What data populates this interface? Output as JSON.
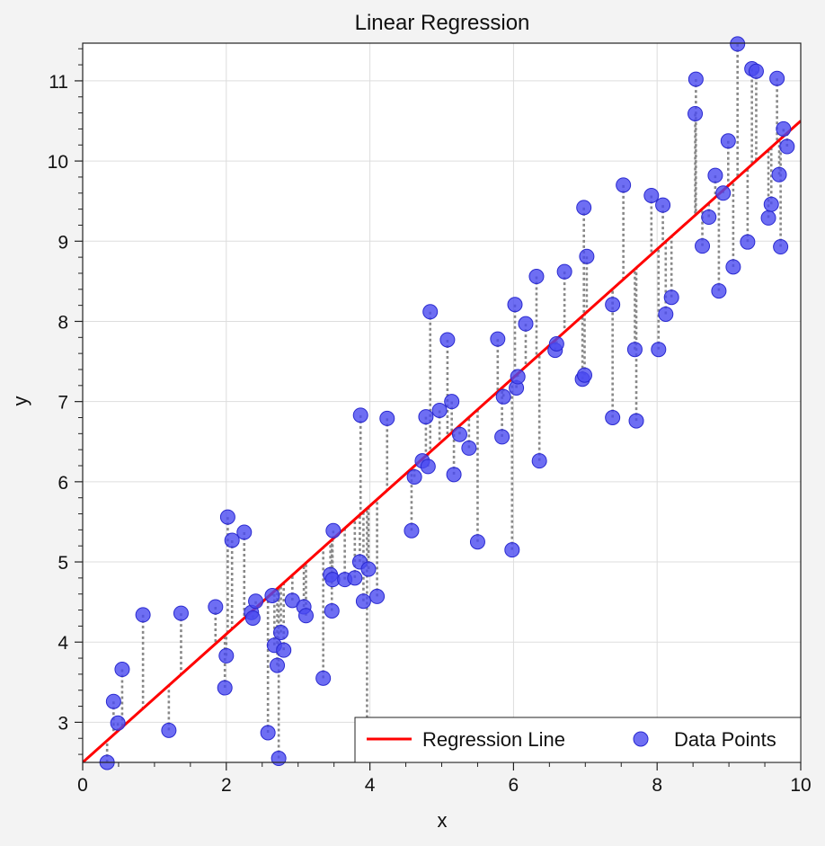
{
  "chart_data": {
    "type": "scatter",
    "title": "Linear Regression",
    "xlabel": "x",
    "ylabel": "y",
    "xlim": [
      0,
      10
    ],
    "ylim": [
      2.5,
      11.47
    ],
    "xticks": [
      0,
      2,
      4,
      6,
      8,
      10
    ],
    "yticks": [
      3,
      4,
      5,
      6,
      7,
      8,
      9,
      10,
      11
    ],
    "grid": true,
    "legend_placement": "lower-right",
    "colors": {
      "points": "#4a4af0",
      "regression_line": "#ff0000",
      "residuals": "#888888",
      "background": "#f3f3f3",
      "plot_area": "#ffffff"
    },
    "regression": {
      "name": "Regression Line",
      "intercept": 2.5,
      "slope": 0.8
    },
    "series": [
      {
        "name": "Data Points",
        "points": [
          [
            0.34,
            2.5
          ],
          [
            0.43,
            3.26
          ],
          [
            0.49,
            2.99
          ],
          [
            0.55,
            3.66
          ],
          [
            0.84,
            4.34
          ],
          [
            1.2,
            2.9
          ],
          [
            1.37,
            4.36
          ],
          [
            1.85,
            4.44
          ],
          [
            1.98,
            3.43
          ],
          [
            2.0,
            3.83
          ],
          [
            2.02,
            5.56
          ],
          [
            2.08,
            5.27
          ],
          [
            2.25,
            5.37
          ],
          [
            2.35,
            4.37
          ],
          [
            2.37,
            4.3
          ],
          [
            2.41,
            4.51
          ],
          [
            2.58,
            2.87
          ],
          [
            2.64,
            4.58
          ],
          [
            2.67,
            3.96
          ],
          [
            2.71,
            3.71
          ],
          [
            2.73,
            2.55
          ],
          [
            2.76,
            4.12
          ],
          [
            2.8,
            3.9
          ],
          [
            2.92,
            4.52
          ],
          [
            3.08,
            4.44
          ],
          [
            3.11,
            4.33
          ],
          [
            3.35,
            3.55
          ],
          [
            3.45,
            4.84
          ],
          [
            3.47,
            4.39
          ],
          [
            3.48,
            4.78
          ],
          [
            3.49,
            5.39
          ],
          [
            3.65,
            4.78
          ],
          [
            3.79,
            4.8
          ],
          [
            3.86,
            5.0
          ],
          [
            3.87,
            6.83
          ],
          [
            3.91,
            4.51
          ],
          [
            3.96,
            2.92
          ],
          [
            3.98,
            4.91
          ],
          [
            4.1,
            4.57
          ],
          [
            4.24,
            6.79
          ],
          [
            4.58,
            5.39
          ],
          [
            4.62,
            6.06
          ],
          [
            4.73,
            6.26
          ],
          [
            4.78,
            6.81
          ],
          [
            4.81,
            6.19
          ],
          [
            4.84,
            8.12
          ],
          [
            4.97,
            6.89
          ],
          [
            5.08,
            7.77
          ],
          [
            5.14,
            7.0
          ],
          [
            5.17,
            6.09
          ],
          [
            5.25,
            6.59
          ],
          [
            5.38,
            6.42
          ],
          [
            5.5,
            5.25
          ],
          [
            5.78,
            7.78
          ],
          [
            5.84,
            6.56
          ],
          [
            5.86,
            7.06
          ],
          [
            5.98,
            5.15
          ],
          [
            6.02,
            8.21
          ],
          [
            6.04,
            7.17
          ],
          [
            6.06,
            7.31
          ],
          [
            6.17,
            7.97
          ],
          [
            6.32,
            8.56
          ],
          [
            6.36,
            6.26
          ],
          [
            6.58,
            7.64
          ],
          [
            6.6,
            7.72
          ],
          [
            6.71,
            8.62
          ],
          [
            6.96,
            7.28
          ],
          [
            6.98,
            9.42
          ],
          [
            6.99,
            7.33
          ],
          [
            7.02,
            8.81
          ],
          [
            7.38,
            6.8
          ],
          [
            7.38,
            8.21
          ],
          [
            7.53,
            9.7
          ],
          [
            7.69,
            7.65
          ],
          [
            7.71,
            6.76
          ],
          [
            7.92,
            9.57
          ],
          [
            8.02,
            7.65
          ],
          [
            8.08,
            9.45
          ],
          [
            8.12,
            8.09
          ],
          [
            8.2,
            8.3
          ],
          [
            8.53,
            10.59
          ],
          [
            8.54,
            11.02
          ],
          [
            8.63,
            8.94
          ],
          [
            8.72,
            9.3
          ],
          [
            8.81,
            9.82
          ],
          [
            8.86,
            8.38
          ],
          [
            8.92,
            9.6
          ],
          [
            8.99,
            10.25
          ],
          [
            9.06,
            8.68
          ],
          [
            9.12,
            11.46
          ],
          [
            9.26,
            8.99
          ],
          [
            9.32,
            11.15
          ],
          [
            9.38,
            11.12
          ],
          [
            9.55,
            9.29
          ],
          [
            9.59,
            9.46
          ],
          [
            9.67,
            11.03
          ],
          [
            9.7,
            9.83
          ],
          [
            9.72,
            8.93
          ],
          [
            9.76,
            10.4
          ],
          [
            9.81,
            10.18
          ]
        ]
      }
    ]
  },
  "legend": {
    "line_label": "Regression Line",
    "points_label": "Data Points"
  }
}
